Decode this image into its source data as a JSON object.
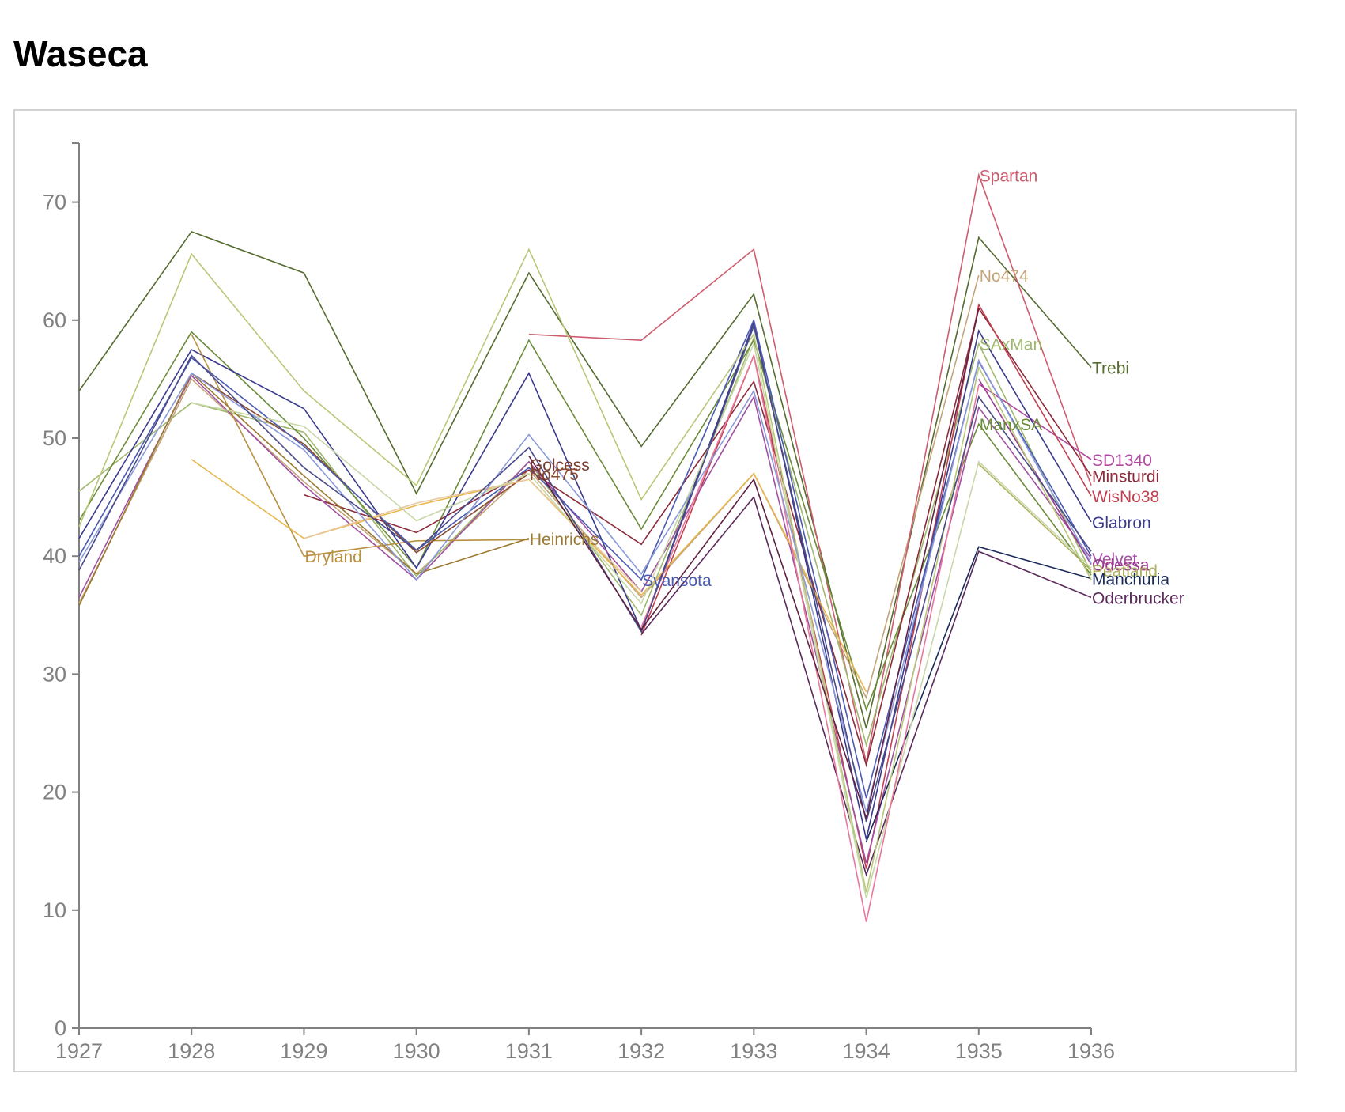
{
  "page": {
    "title": "Waseca"
  },
  "chart_data": {
    "type": "line",
    "title": "Waseca",
    "xlabel": "",
    "ylabel": "",
    "x": [
      1927,
      1928,
      1929,
      1930,
      1931,
      1932,
      1933,
      1934,
      1935,
      1936
    ],
    "xlim": [
      1927,
      1936
    ],
    "ylim": [
      0,
      75
    ],
    "y_ticks": [
      0,
      10,
      20,
      30,
      40,
      50,
      60,
      70
    ],
    "x_ticks": [
      1927,
      1928,
      1929,
      1930,
      1931,
      1932,
      1933,
      1934,
      1935,
      1936
    ],
    "grid": false,
    "legend": "none",
    "series": [
      {
        "name": "Trebi",
        "color": "#556b2f",
        "label_x": 1936,
        "values": [
          54.0,
          67.5,
          64.0,
          45.3,
          64.0,
          49.3,
          62.2,
          25.4,
          67.0,
          56.0
        ]
      },
      {
        "name": "No474",
        "color": "#c4a57a",
        "label_x": 1935,
        "values": [
          36.0,
          55.0,
          46.3,
          38.5,
          47.3,
          36.5,
          47.0,
          28.0,
          63.8,
          null
        ]
      },
      {
        "name": "Spartan",
        "color": "#cd5c6e",
        "label_x": 1935,
        "values": [
          null,
          null,
          null,
          null,
          58.8,
          58.3,
          66.0,
          22.5,
          72.3,
          46.0
        ]
      },
      {
        "name": "SAxMan",
        "color": "#a0b86e",
        "label_x": 1935,
        "values": [
          45.5,
          53.0,
          50.5,
          38.3,
          48.0,
          35.0,
          58.5,
          24.0,
          58.0,
          38.6
        ]
      },
      {
        "name": "ManxSA",
        "color": "#6b8c3a",
        "label_x": 1935,
        "values": [
          43.0,
          59.0,
          50.0,
          39.0,
          58.3,
          42.3,
          58.3,
          27.0,
          51.2,
          38.4
        ]
      },
      {
        "name": "SD1340",
        "color": "#b04aa0",
        "label_x": 1936,
        "values": [
          null,
          null,
          null,
          null,
          null,
          null,
          null,
          null,
          54.6,
          48.2
        ]
      },
      {
        "name": "Minsturdi",
        "color": "#8b2a3a",
        "label_x": 1936,
        "values": [
          null,
          null,
          45.2,
          42.0,
          47.3,
          41.0,
          54.8,
          22.3,
          61.0,
          46.8
        ]
      },
      {
        "name": "WisNo38",
        "color": "#c04050",
        "label_x": 1936,
        "values": [
          null,
          null,
          null,
          null,
          null,
          33.3,
          57.0,
          13.5,
          61.3,
          45.1
        ]
      },
      {
        "name": "Glabron",
        "color": "#3a3a8c",
        "label_x": 1936,
        "values": [
          41.5,
          57.5,
          52.5,
          39.0,
          55.5,
          33.7,
          59.8,
          16.0,
          59.1,
          42.9
        ]
      },
      {
        "name": "Velvet",
        "color": "#a050a0",
        "label_x": 1936,
        "values": [
          36.5,
          55.3,
          46.0,
          38.0,
          48.0,
          37.0,
          53.5,
          14.0,
          52.6,
          39.8
        ]
      },
      {
        "name": "Odessa",
        "color": "#9b3a8e",
        "label_x": 1936,
        "values": [
          null,
          null,
          null,
          null,
          null,
          null,
          null,
          null,
          55.0,
          39.3
        ]
      },
      {
        "name": "Peatland",
        "color": "#b0b060",
        "label_x": 1936,
        "values": [
          null,
          null,
          null,
          null,
          null,
          null,
          null,
          null,
          47.8,
          38.8
        ]
      },
      {
        "name": "Manchuria",
        "color": "#1a2a5a",
        "label_x": 1936,
        "values": [
          null,
          null,
          null,
          null,
          null,
          null,
          null,
          15.8,
          40.8,
          38.1
        ]
      },
      {
        "name": "Oderbrucker",
        "color": "#5a2a5a",
        "label_x": 1936,
        "values": [
          null,
          null,
          null,
          null,
          null,
          33.4,
          45.0,
          13.0,
          40.4,
          36.5
        ]
      },
      {
        "name": "Dryland",
        "color": "#b89040",
        "label_x": 1929,
        "values": [
          null,
          58.8,
          40.0,
          41.3,
          41.4,
          null,
          null,
          null,
          null,
          null
        ]
      },
      {
        "name": "Heinrichs",
        "color": "#9a7a30",
        "label_x": 1931,
        "values": [
          35.8,
          55.5,
          46.8,
          38.5,
          41.5,
          null,
          null,
          null,
          null,
          null
        ]
      },
      {
        "name": "Golcess",
        "color": "#7a3a2a",
        "label_x": 1931,
        "values": [
          null,
          null,
          null,
          null,
          47.8,
          null,
          null,
          null,
          null,
          null
        ]
      },
      {
        "name": "No475",
        "color": "#8b4a30",
        "label_x": 1931,
        "values": [
          null,
          55.5,
          49.5,
          40.3,
          47.0,
          null,
          null,
          null,
          null,
          null
        ]
      },
      {
        "name": "Svansota",
        "color": "#4a5ab0",
        "label_x": 1932,
        "values": [
          40.0,
          56.8,
          49.3,
          40.5,
          47.5,
          38.0,
          60.0,
          19.5,
          56.5,
          40.0
        ]
      },
      {
        "name": "",
        "color": "#e8b850",
        "values": [
          null,
          48.2,
          41.5,
          44.3,
          46.5,
          36.7,
          47.0,
          28.5,
          null,
          null
        ]
      },
      {
        "name": "",
        "color": "#e8c8a0",
        "values": [
          null,
          null,
          41.5,
          44.5,
          46.5,
          37.0,
          null,
          null,
          null,
          null
        ]
      },
      {
        "name": "",
        "color": "#b8c878",
        "values": [
          42.5,
          65.6,
          54.0,
          46.0,
          66.0,
          44.8,
          58.8,
          11.5,
          56.0,
          38.0
        ]
      },
      {
        "name": "",
        "color": "#c8d8a8",
        "values": [
          null,
          53.0,
          51.0,
          43.0,
          47.0,
          36.0,
          58.0,
          11.0,
          48.0,
          39.0
        ]
      },
      {
        "name": "",
        "color": "#e8789a",
        "values": [
          null,
          null,
          null,
          null,
          null,
          34.0,
          57.0,
          9.0,
          54.5,
          null
        ]
      },
      {
        "name": "",
        "color": "#8a9ad8",
        "values": [
          39.5,
          55.5,
          49.0,
          38.0,
          50.3,
          38.5,
          54.0,
          18.3,
          56.6,
          39.4
        ]
      },
      {
        "name": "",
        "color": "#4a4a8a",
        "values": [
          38.8,
          57.0,
          47.5,
          40.5,
          49.2,
          33.6,
          59.5,
          17.5,
          53.5,
          40.4
        ]
      },
      {
        "name": "",
        "color": "#602040",
        "values": [
          null,
          null,
          null,
          null,
          48.5,
          33.8,
          46.5,
          17.8,
          61.0,
          null
        ]
      }
    ]
  }
}
